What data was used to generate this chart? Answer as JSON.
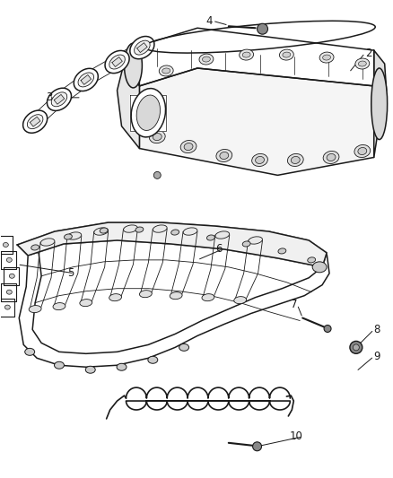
{
  "background_color": "#ffffff",
  "line_color": "#1a1a1a",
  "label_color": "#1a1a1a",
  "fig_width": 4.38,
  "fig_height": 5.33,
  "dpi": 100,
  "label_fontsize": 8.5,
  "lw_main": 1.1,
  "lw_thin": 0.6,
  "lw_detail": 0.5
}
